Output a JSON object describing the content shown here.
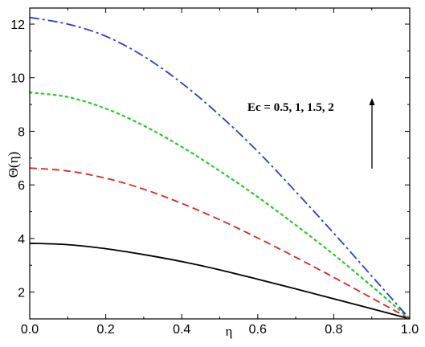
{
  "chart_data": {
    "type": "line",
    "xlabel": "η",
    "ylabel": "Θ(η)",
    "xlim": [
      0.0,
      1.0
    ],
    "ylim": [
      1.0,
      12.6
    ],
    "x_ticks": [
      0.0,
      0.2,
      0.4,
      0.6,
      0.8,
      1.0
    ],
    "x_tick_labels": [
      "0.0",
      "0.2",
      "0.4",
      "0.6",
      "0.8",
      "1.0"
    ],
    "y_ticks": [
      2,
      4,
      6,
      8,
      10,
      12
    ],
    "y_tick_labels": [
      "2",
      "4",
      "6",
      "8",
      "10",
      "12"
    ],
    "x": [
      0.0,
      0.1,
      0.2,
      0.3,
      0.4,
      0.5,
      0.6,
      0.7,
      0.8,
      0.9,
      1.0
    ],
    "series": [
      {
        "param": "0.5",
        "color": "#000000",
        "dash": "solid",
        "values": [
          3.82,
          3.77,
          3.62,
          3.4,
          3.14,
          2.83,
          2.48,
          2.12,
          1.75,
          1.38,
          1.0
        ]
      },
      {
        "param": "1",
        "color": "#e8211c",
        "dash": "dashed",
        "values": [
          6.63,
          6.52,
          6.25,
          5.84,
          5.31,
          4.7,
          4.02,
          3.3,
          2.55,
          1.78,
          1.0
        ]
      },
      {
        "param": "1.5",
        "color": "#22cc22",
        "dash": "dotted",
        "values": [
          9.45,
          9.28,
          8.85,
          8.21,
          7.42,
          6.52,
          5.55,
          4.5,
          3.4,
          2.22,
          1.0
        ]
      },
      {
        "param": "2",
        "color": "#1f3fdc",
        "dash": "dash-dot",
        "values": [
          12.25,
          12.0,
          11.55,
          10.8,
          9.8,
          8.6,
          7.25,
          5.75,
          4.2,
          2.6,
          1.0
        ]
      }
    ],
    "annotation": {
      "text": "Ec = 0.5, 1, 1.5, 2",
      "arrow_direction": "up"
    }
  }
}
